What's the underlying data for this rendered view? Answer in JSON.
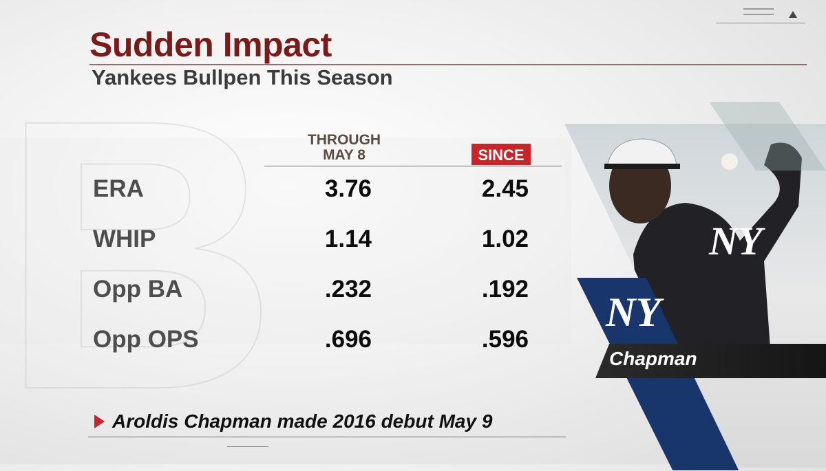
{
  "header": {
    "title": "Sudden Impact",
    "subtitle": "Yankees Bullpen This Season"
  },
  "columns": {
    "through_line1": "THROUGH",
    "through_line2": "MAY 8",
    "since": "SINCE"
  },
  "rows": [
    {
      "label": "ERA",
      "through": "3.76",
      "since": "2.45"
    },
    {
      "label": "WHIP",
      "through": "1.14",
      "since": "1.02"
    },
    {
      "label": "Opp BA",
      "through": ".232",
      "since": ".192"
    },
    {
      "label": "Opp OPS",
      "through": ".696",
      "since": ".596"
    }
  ],
  "footnote": "Aroldis Chapman made 2016 debut May 9",
  "player": {
    "name": "Chapman",
    "team_logo": "NY"
  },
  "colors": {
    "title": "#7a1a1a",
    "accent_red": "#c8242a",
    "team_navy": "#18366b"
  },
  "icons": [
    "menu-lines-icon",
    "triangle-up-icon",
    "red-arrow-icon"
  ]
}
